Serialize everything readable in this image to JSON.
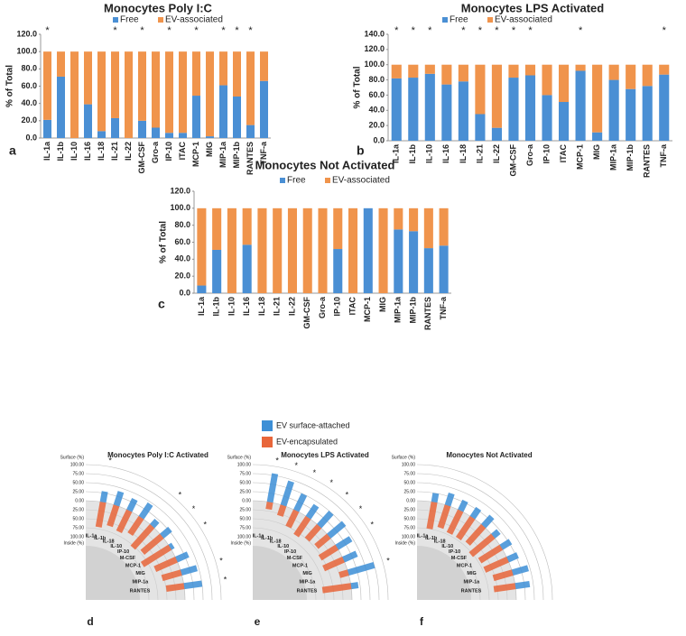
{
  "chart_data": [
    {
      "type": "bar",
      "stacked": true,
      "panel_label": "a",
      "title": "Monocytes Poly I:C",
      "y_label": "% of Total",
      "categories": [
        "IL-1a",
        "IL-1b",
        "IL-10",
        "IL-16",
        "IL-18",
        "IL-21",
        "IL-22",
        "GM-CSF",
        "Gro-a",
        "IP-10",
        "ITAC",
        "MCP-1",
        "MIG",
        "MIP-1a",
        "MIP-1b",
        "RANTES",
        "TNF-a"
      ],
      "series": [
        {
          "name": "Free",
          "color": "#4a8fd4",
          "values": [
            21,
            71,
            0,
            39,
            8,
            23,
            0,
            20,
            12,
            6,
            6,
            49,
            2,
            61,
            48,
            15,
            66
          ]
        },
        {
          "name": "EV-associated",
          "color": "#f0944c",
          "values": [
            79,
            29,
            100,
            61,
            92,
            77,
            100,
            80,
            88,
            94,
            94,
            51,
            98,
            39,
            52,
            85,
            34
          ]
        }
      ],
      "significance": [
        "*",
        null,
        null,
        null,
        null,
        "*",
        null,
        "*",
        null,
        "*",
        null,
        "*",
        null,
        "*",
        "*",
        "*",
        null
      ],
      "ylim": [
        0,
        120
      ],
      "yticks": [
        {
          "value": 0,
          "label": "0.0"
        },
        {
          "value": 20,
          "label": "20.0"
        },
        {
          "value": 40,
          "label": "40.0"
        },
        {
          "value": 60,
          "label": "60.0"
        },
        {
          "value": 80,
          "label": "80.0"
        },
        {
          "value": 100,
          "label": "100.0"
        },
        {
          "value": 120,
          "label": "120.0"
        }
      ]
    },
    {
      "type": "bar",
      "stacked": true,
      "panel_label": "b",
      "title": "Monocytes LPS Activated",
      "y_label": "% of Total",
      "categories": [
        "IL-1a",
        "IL-1b",
        "IL-10",
        "IL-16",
        "IL-18",
        "IL-21",
        "IL-22",
        "GM-CSF",
        "Gro-a",
        "IP-10",
        "ITAC",
        "MCP-1",
        "MIG",
        "MIP-1a",
        "MIP-1b",
        "RANTES",
        "TNF-a"
      ],
      "series": [
        {
          "name": "Free",
          "color": "#4a8fd4",
          "values": [
            82,
            83,
            88,
            74,
            78,
            35,
            17,
            83,
            86,
            60,
            51,
            92,
            11,
            80,
            68,
            72,
            87
          ]
        },
        {
          "name": "EV-associated",
          "color": "#f0944c",
          "values": [
            18,
            17,
            12,
            26,
            22,
            65,
            83,
            17,
            14,
            40,
            49,
            8,
            89,
            20,
            32,
            28,
            13
          ]
        }
      ],
      "significance": [
        "*",
        "*",
        "*",
        null,
        "*",
        "*",
        "*",
        "*",
        "*",
        null,
        null,
        "*",
        null,
        null,
        null,
        null,
        "*"
      ],
      "ylim": [
        0,
        140
      ],
      "yticks": [
        {
          "value": 0,
          "label": "0.0"
        },
        {
          "value": 20,
          "label": "20.0"
        },
        {
          "value": 40,
          "label": "40.0"
        },
        {
          "value": 60,
          "label": "60.0"
        },
        {
          "value": 80,
          "label": "80.0"
        },
        {
          "value": 100,
          "label": "100.0"
        },
        {
          "value": 120,
          "label": "120.0"
        },
        {
          "value": 140,
          "label": "140.0"
        }
      ]
    },
    {
      "type": "bar",
      "stacked": true,
      "panel_label": "c",
      "title": "Monocytes Not Activated",
      "y_label": "% of Total",
      "categories": [
        "IL-1a",
        "IL-1b",
        "IL-10",
        "IL-16",
        "IL-18",
        "IL-21",
        "IL-22",
        "GM-CSF",
        "Gro-a",
        "IP-10",
        "ITAC",
        "MCP-1",
        "MIG",
        "MIP-1a",
        "MIP-1b",
        "RANTES",
        "TNF-a"
      ],
      "series": [
        {
          "name": "Free",
          "color": "#4a8fd4",
          "values": [
            9,
            51,
            0,
            57,
            0,
            0,
            0,
            0,
            0,
            52,
            0,
            100,
            0,
            75,
            73,
            53,
            56
          ]
        },
        {
          "name": "EV-associated",
          "color": "#f0944c",
          "values": [
            91,
            49,
            100,
            43,
            100,
            100,
            100,
            100,
            100,
            48,
            100,
            0,
            100,
            25,
            27,
            47,
            44
          ]
        }
      ],
      "ylim": [
        0,
        120
      ],
      "yticks": [
        {
          "value": 0,
          "label": "0.0"
        },
        {
          "value": 20,
          "label": "20.0"
        },
        {
          "value": 40,
          "label": "40.0"
        },
        {
          "value": 60,
          "label": "60.0"
        },
        {
          "value": 80,
          "label": "80.0"
        },
        {
          "value": 100,
          "label": "100.0"
        },
        {
          "value": 120,
          "label": "120.0"
        }
      ]
    },
    {
      "type": "radial",
      "panel_label": "d",
      "title": "Monocytes Poly I:C Activated",
      "categories": [
        "IL-1a",
        "IL-1b",
        "IL-18",
        "IL-10",
        "IP-10",
        "M-CSF",
        "MCP-1",
        "MIG",
        "MIP-1a",
        "RANTES"
      ],
      "surface": [
        30,
        40,
        35,
        45,
        20,
        30,
        10,
        35,
        45,
        50
      ],
      "inside": [
        70,
        60,
        65,
        55,
        80,
        70,
        90,
        65,
        55,
        50
      ],
      "significance": [
        "*",
        null,
        null,
        null,
        "*",
        "*",
        "*",
        null,
        "*",
        "*"
      ]
    },
    {
      "type": "radial",
      "panel_label": "e",
      "title": "Monocytes LPS Activated",
      "categories": [
        "IL-1a",
        "IL-1b",
        "IL-18",
        "IL-10",
        "IP-10",
        "M-CSF",
        "MCP-1",
        "MIG",
        "MIP-1a",
        "RANTES"
      ],
      "surface": [
        80,
        70,
        50,
        40,
        50,
        55,
        45,
        40,
        75,
        20
      ],
      "inside": [
        20,
        30,
        50,
        60,
        50,
        45,
        55,
        60,
        25,
        80
      ],
      "significance": [
        "*",
        "*",
        "*",
        "*",
        "*",
        "*",
        "*",
        null,
        "*",
        null
      ]
    },
    {
      "type": "radial",
      "panel_label": "f",
      "title": "Monocytes Not Activated",
      "categories": [
        "IL-1a",
        "IL-1b",
        "IL-18",
        "IL-10",
        "IP-10",
        "M-CSF",
        "MCP-1",
        "MIG",
        "MIP-1a",
        "RANTES"
      ],
      "surface": [
        25,
        35,
        30,
        30,
        35,
        20,
        30,
        30,
        45,
        40
      ],
      "inside": [
        75,
        65,
        70,
        70,
        65,
        80,
        70,
        70,
        55,
        60
      ]
    }
  ],
  "radial_legend": [
    {
      "name": "EV surface-attached",
      "color": "#3d8fd6"
    },
    {
      "name": "EV-encapsulated",
      "color": "#e8663a"
    }
  ],
  "radial_axis": {
    "surface_title": "Surface (%)",
    "inside_title": "Inside (%)",
    "surface_ticks": [
      {
        "value": 100,
        "label": "100.00"
      },
      {
        "value": 75,
        "label": "75.00"
      },
      {
        "value": 50,
        "label": "50.00"
      },
      {
        "value": 25,
        "label": "25.00"
      },
      {
        "value": 0,
        "label": "0.00"
      }
    ],
    "inside_ticks": [
      {
        "value": 25,
        "label": "25.00"
      },
      {
        "value": 50,
        "label": "50.00"
      },
      {
        "value": 75,
        "label": "75.00"
      },
      {
        "value": 100,
        "label": "100.00"
      }
    ]
  }
}
